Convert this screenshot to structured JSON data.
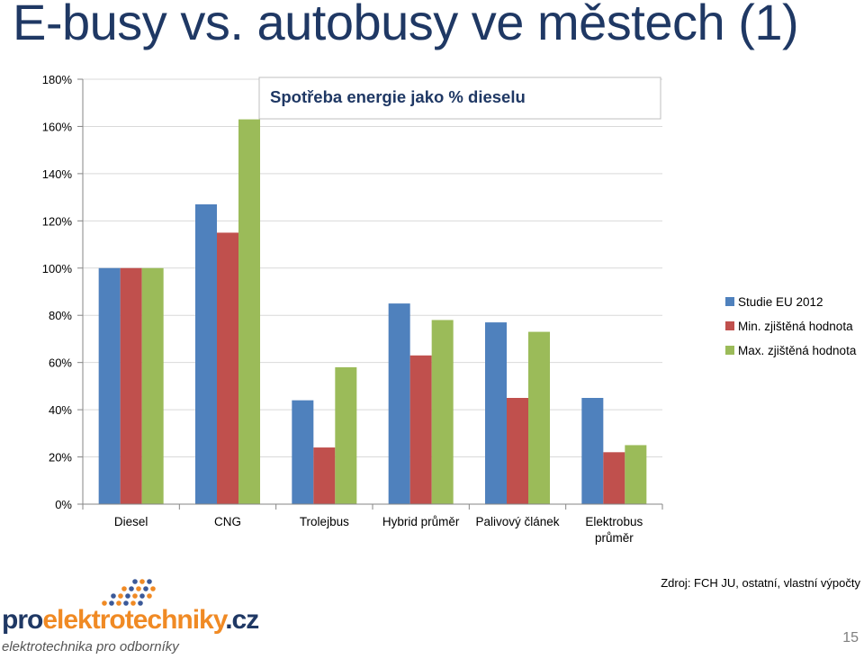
{
  "slide": {
    "title": "E-busy vs. autobusy ve městech (1)",
    "source": "Zdroj: FCH JU, ostatní, vlastní výpočty",
    "page_number": "15"
  },
  "logo": {
    "word_pro": "pro",
    "word_main": "elektrotechniky",
    "word_tld": ".cz",
    "tagline": "elektrotechnika pro odborníky"
  },
  "colors": {
    "title": "#1F3864",
    "series": [
      "#4F81BD",
      "#C0504D",
      "#9BBB59"
    ],
    "axis": "#868686",
    "grid": "#D9D9D9"
  },
  "chart_data": {
    "type": "bar",
    "title": "Spotřeba energie jako % dieselu",
    "categories": [
      "Diesel",
      "CNG",
      "Trolejbus",
      "Hybrid průměr",
      "Palivový článek",
      "Elektrobus průměr"
    ],
    "category_lines": [
      [
        "Diesel"
      ],
      [
        "CNG"
      ],
      [
        "Trolejbus"
      ],
      [
        "Hybrid průměr"
      ],
      [
        "Palivový článek"
      ],
      [
        "Elektrobus",
        "průměr"
      ]
    ],
    "series": [
      {
        "name": "Studie EU 2012",
        "values": [
          100,
          127,
          44,
          85,
          77,
          45
        ]
      },
      {
        "name": "Min. zjištěná hodnota",
        "values": [
          100,
          115,
          24,
          63,
          45,
          22
        ]
      },
      {
        "name": "Max. zjištěná hodnota",
        "values": [
          100,
          163,
          58,
          78,
          73,
          25
        ]
      }
    ],
    "ylim": [
      0,
      180
    ],
    "yticks": [
      "0%",
      "20%",
      "40%",
      "60%",
      "80%",
      "100%",
      "120%",
      "140%",
      "160%",
      "180%"
    ],
    "grid": true,
    "legend_position": "right"
  }
}
